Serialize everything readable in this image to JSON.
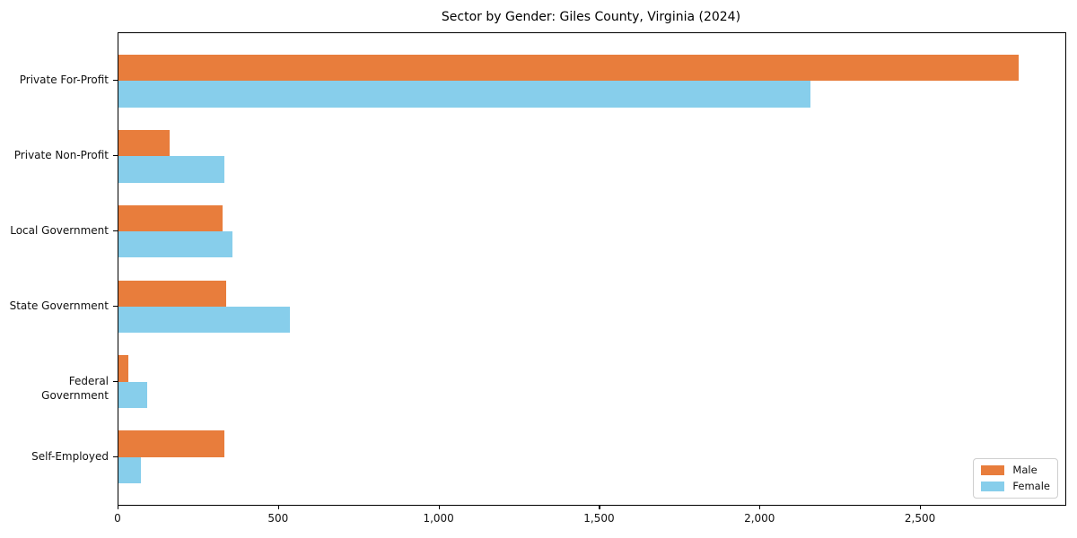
{
  "title": "Sector by Gender: Giles County, Virginia (2024)",
  "chart_data": {
    "type": "bar",
    "orientation": "horizontal",
    "title": "Sector by Gender: Giles County, Virginia (2024)",
    "xlabel": "",
    "ylabel": "",
    "categories": [
      "Private For-Profit",
      "Private Non-Profit",
      "Local Government",
      "State Government",
      "Federal Government",
      "Self-Employed"
    ],
    "series": [
      {
        "name": "Male",
        "color": "#e87d3c",
        "values": [
          2805,
          160,
          325,
          335,
          30,
          330
        ]
      },
      {
        "name": "Female",
        "color": "#87ceeb",
        "values": [
          2155,
          330,
          355,
          535,
          90,
          70
        ]
      }
    ],
    "xlim": [
      0,
      2950
    ],
    "xticks": [
      0,
      500,
      1000,
      1500,
      2000,
      2500
    ],
    "xtick_labels": [
      "0",
      "500",
      "1,000",
      "1,500",
      "2,000",
      "2,500"
    ],
    "grid": false,
    "legend_position": "lower right",
    "bar_group_order": "male-above-female"
  }
}
